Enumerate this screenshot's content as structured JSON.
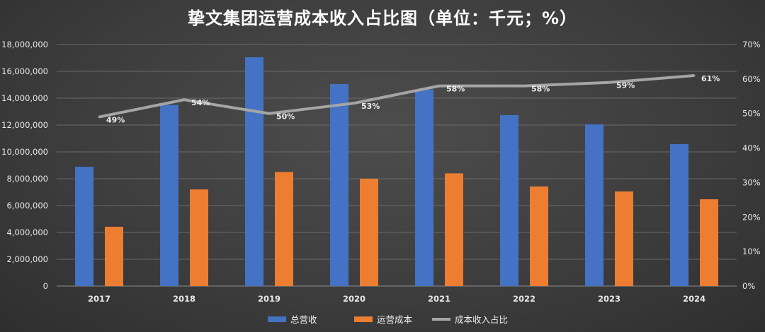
{
  "chart_data": {
    "type": "bar+line",
    "title": "挚文集团运营成本收入占比图（单位：千元；%）",
    "categories": [
      "2017",
      "2018",
      "2019",
      "2020",
      "2021",
      "2022",
      "2023",
      "2024"
    ],
    "series": [
      {
        "name": "总营收",
        "type": "bar",
        "axis": "left",
        "color": "#4472C4",
        "values": [
          8890000,
          13500000,
          17050000,
          15050000,
          14650000,
          12740000,
          12050000,
          10580000
        ]
      },
      {
        "name": "运营成本",
        "type": "bar",
        "axis": "left",
        "color": "#ED7D31",
        "values": [
          4420000,
          7200000,
          8500000,
          8000000,
          8400000,
          7420000,
          7050000,
          6470000
        ]
      },
      {
        "name": "成本收入占比",
        "type": "line",
        "axis": "right",
        "color": "#A5A5A5",
        "values": [
          49,
          54,
          50,
          53,
          58,
          58,
          59,
          61
        ],
        "labels": [
          "49%",
          "54%",
          "50%",
          "53%",
          "58%",
          "58%",
          "59%",
          "61%"
        ]
      }
    ],
    "y_left": {
      "range": [
        0,
        18000000
      ],
      "ticks": [
        "0",
        "2,000,000",
        "4,000,000",
        "6,000,000",
        "8,000,000",
        "10,000,000",
        "12,000,000",
        "14,000,000",
        "16,000,000",
        "18,000,000"
      ]
    },
    "y_right": {
      "range": [
        0,
        70
      ],
      "ticks": [
        "0%",
        "10%",
        "20%",
        "30%",
        "40%",
        "50%",
        "60%",
        "70%"
      ]
    },
    "grid": true,
    "legend": "bottom"
  }
}
